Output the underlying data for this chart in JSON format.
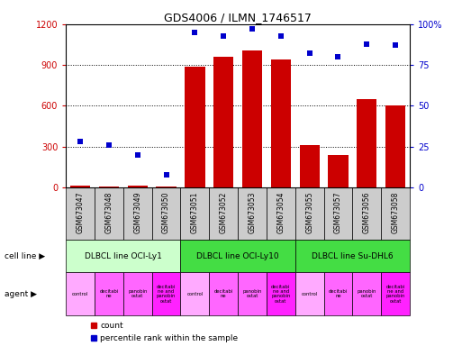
{
  "title": "GDS4006 / ILMN_1746517",
  "samples": [
    "GSM673047",
    "GSM673048",
    "GSM673049",
    "GSM673050",
    "GSM673051",
    "GSM673052",
    "GSM673053",
    "GSM673054",
    "GSM673055",
    "GSM673057",
    "GSM673056",
    "GSM673058"
  ],
  "counts": [
    15,
    10,
    12,
    8,
    890,
    960,
    1010,
    940,
    310,
    240,
    650,
    600
  ],
  "percentiles": [
    28,
    26,
    20,
    8,
    95,
    93,
    97,
    93,
    82,
    80,
    88,
    87
  ],
  "ylim_left": [
    0,
    1200
  ],
  "ylim_right": [
    0,
    100
  ],
  "yticks_left": [
    0,
    300,
    600,
    900,
    1200
  ],
  "yticks_right": [
    0,
    25,
    50,
    75,
    100
  ],
  "bar_color": "#cc0000",
  "dot_color": "#0000cc",
  "cell_line_groups": [
    {
      "label": "DLBCL line OCI-Ly1",
      "start": 0,
      "end": 4,
      "color": "#ccffcc"
    },
    {
      "label": "DLBCL line OCI-Ly10",
      "start": 4,
      "end": 8,
      "color": "#44dd44"
    },
    {
      "label": "DLBCL line Su-DHL6",
      "start": 8,
      "end": 12,
      "color": "#44dd44"
    }
  ],
  "agents": [
    "control",
    "decitabi\nne",
    "panobin\nostat",
    "decitabi\nne and\npanobin\nostat",
    "control",
    "decitabi\nne",
    "panobin\nostat",
    "decitabi\nne and\npanobin\nostat",
    "control",
    "decitabi\nne",
    "panobin\nostat",
    "decitabi\nne and\npanobin\nostat"
  ],
  "agent_colors": [
    "#ffaaff",
    "#ff66ff",
    "#ff66ff",
    "#ff22ff",
    "#ffaaff",
    "#ff66ff",
    "#ff66ff",
    "#ff22ff",
    "#ffaaff",
    "#ff66ff",
    "#ff66ff",
    "#ff22ff"
  ],
  "sample_box_color": "#cccccc",
  "background_color": "#ffffff",
  "left_label_color": "#000000",
  "grid_dotted_color": "#000000",
  "ylabel_left_color": "#cc0000",
  "ylabel_right_color": "#0000cc"
}
